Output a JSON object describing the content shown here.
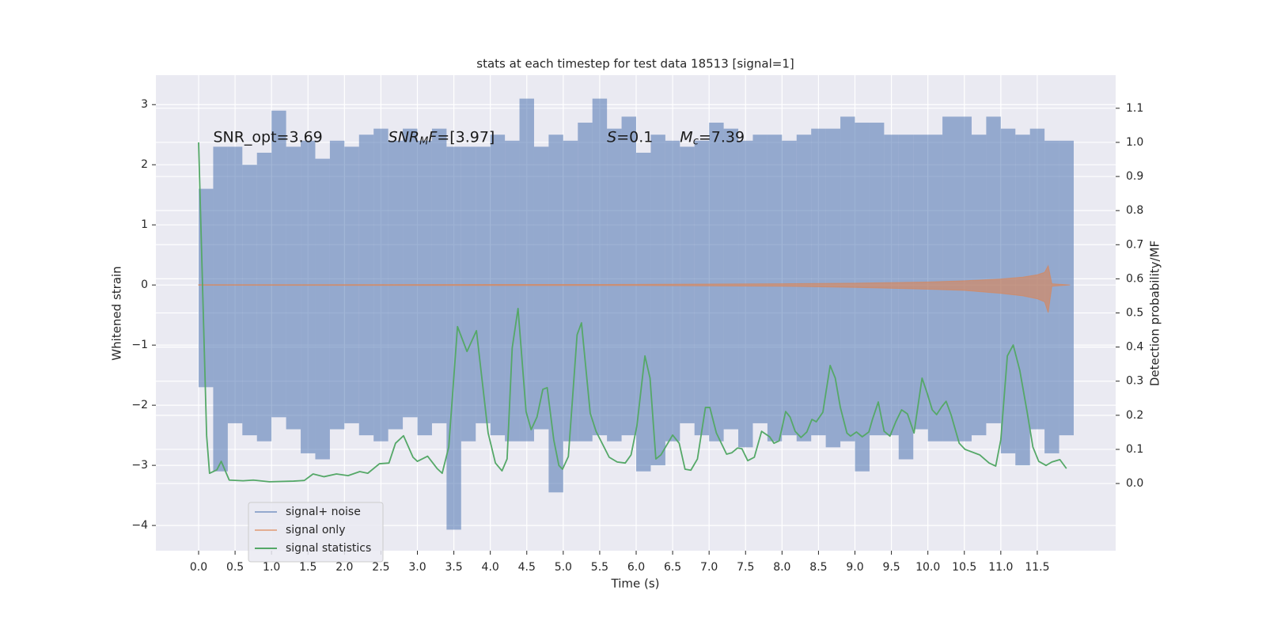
{
  "chart_data": {
    "type": "line",
    "title": "stats at each timestep for test data 18513 [signal=1]",
    "x_label": "Time (s)",
    "y_label": "Whitened strain",
    "y2_label": "Detection probability/MF",
    "xlim": [
      -0.586,
      12.575
    ],
    "ylim": [
      -4.42,
      3.49
    ],
    "y2lim": [
      -0.197,
      1.197
    ],
    "xticks": [
      {
        "value": 0,
        "label": "0.0"
      },
      {
        "value": 0.5,
        "label": "0.5"
      },
      {
        "value": 1,
        "label": "1.0"
      },
      {
        "value": 1.5,
        "label": "1.5"
      },
      {
        "value": 2,
        "label": "2.0"
      },
      {
        "value": 2.5,
        "label": "2.5"
      },
      {
        "value": 3,
        "label": "3.0"
      },
      {
        "value": 3.5,
        "label": "3.5"
      },
      {
        "value": 4,
        "label": "4.0"
      },
      {
        "value": 4.5,
        "label": "4.5"
      },
      {
        "value": 5,
        "label": "5.0"
      },
      {
        "value": 5.5,
        "label": "5.5"
      },
      {
        "value": 6,
        "label": "6.0"
      },
      {
        "value": 6.5,
        "label": "6.5"
      },
      {
        "value": 7,
        "label": "7.0"
      },
      {
        "value": 7.5,
        "label": "7.5"
      },
      {
        "value": 8,
        "label": "8.0"
      },
      {
        "value": 8.5,
        "label": "8.5"
      },
      {
        "value": 9,
        "label": "9.0"
      },
      {
        "value": 9.5,
        "label": "9.5"
      },
      {
        "value": 10,
        "label": "10.0"
      },
      {
        "value": 10.5,
        "label": "10.5"
      },
      {
        "value": 11,
        "label": "11.0"
      },
      {
        "value": 11.5,
        "label": "11.5"
      }
    ],
    "yticks": [
      {
        "value": -4,
        "label": "−4"
      },
      {
        "value": -3,
        "label": "−3"
      },
      {
        "value": -2,
        "label": "−2"
      },
      {
        "value": -1,
        "label": "−1"
      },
      0,
      1,
      2,
      3
    ],
    "y2ticks": [
      {
        "value": 0,
        "label": "0.0"
      },
      {
        "value": 0.1,
        "label": "0.1"
      },
      {
        "value": 0.2,
        "label": "0.2"
      },
      {
        "value": 0.3,
        "label": "0.3"
      },
      {
        "value": 0.4,
        "label": "0.4"
      },
      {
        "value": 0.5,
        "label": "0.5"
      },
      {
        "value": 0.6,
        "label": "0.6"
      },
      {
        "value": 0.7,
        "label": "0.7"
      },
      {
        "value": 0.8,
        "label": "0.8"
      },
      {
        "value": 0.9,
        "label": "0.9"
      },
      {
        "value": 1,
        "label": "1.0"
      },
      {
        "value": 1.1,
        "label": "1.1"
      }
    ],
    "grid": true,
    "legend": "lower left",
    "annotations": [
      {
        "x": 0.2,
        "y": 2.46,
        "parts": [
          {
            "text": "SNR_opt=3.69",
            "style": "normal"
          }
        ]
      },
      {
        "x": 2.6,
        "y": 2.46,
        "parts": [
          {
            "text": "SNR",
            "style": "italic"
          },
          {
            "text": "M",
            "style": "italic-sub"
          },
          {
            "text": "F",
            "style": "italic"
          },
          {
            "text": "=[3.97]",
            "style": "normal"
          }
        ]
      },
      {
        "x": 5.6,
        "y": 2.46,
        "parts": [
          {
            "text": "S",
            "style": "italic"
          },
          {
            "text": "=0.1",
            "style": "normal"
          }
        ]
      },
      {
        "x": 6.6,
        "y": 2.46,
        "parts": [
          {
            "text": "M",
            "style": "italic"
          },
          {
            "text": "c",
            "style": "italic-sub"
          },
          {
            "text": "=7.39",
            "style": "normal"
          }
        ]
      }
    ],
    "series": [
      {
        "name": "signal+ noise",
        "color": "#4c72b0",
        "alpha": 0.55,
        "x": [
          0,
          0.2,
          0.4,
          0.6,
          0.8,
          1,
          1.2,
          1.4,
          1.6,
          1.8,
          2,
          2.2,
          2.4,
          2.6,
          2.8,
          3,
          3.2,
          3.4,
          3.6,
          3.8,
          4,
          4.2,
          4.4,
          4.6,
          4.8,
          5,
          5.2,
          5.4,
          5.6,
          5.8,
          6,
          6.2,
          6.4,
          6.6,
          6.8,
          7,
          7.2,
          7.4,
          7.6,
          7.8,
          8,
          8.2,
          8.4,
          8.6,
          8.8,
          9,
          9.2,
          9.4,
          9.6,
          9.8,
          10,
          10.2,
          10.4,
          10.6,
          10.8,
          11,
          11.2,
          11.4,
          11.6,
          11.8
        ],
        "upper": [
          1.6,
          2.3,
          2.3,
          2.0,
          2.2,
          2.9,
          2.3,
          2.4,
          2.1,
          2.4,
          2.3,
          2.5,
          2.6,
          2.4,
          2.6,
          2.4,
          2.6,
          2.3,
          2.3,
          2.3,
          2.5,
          2.4,
          3.1,
          2.3,
          2.5,
          2.4,
          2.7,
          3.1,
          2.6,
          2.8,
          2.2,
          2.5,
          2.4,
          2.3,
          2.4,
          2.7,
          2.6,
          2.4,
          2.5,
          2.5,
          2.4,
          2.5,
          2.6,
          2.6,
          2.8,
          2.7,
          2.7,
          2.5,
          2.5,
          2.5,
          2.5,
          2.8,
          2.8,
          2.5,
          2.8,
          2.6,
          2.5,
          2.6,
          2.4,
          2.4
        ],
        "lower": [
          -1.7,
          -3.1,
          -2.3,
          -2.5,
          -2.6,
          -2.2,
          -2.4,
          -2.8,
          -2.9,
          -2.4,
          -2.3,
          -2.5,
          -2.6,
          -2.4,
          -2.2,
          -2.5,
          -2.3,
          -4.07,
          -2.6,
          -2.3,
          -2.5,
          -2.6,
          -2.6,
          -2.4,
          -3.45,
          -2.6,
          -2.6,
          -2.5,
          -2.6,
          -2.5,
          -3.1,
          -3.0,
          -2.6,
          -2.3,
          -2.5,
          -2.6,
          -2.4,
          -2.7,
          -2.3,
          -2.6,
          -2.5,
          -2.6,
          -2.5,
          -2.7,
          -2.6,
          -3.1,
          -2.5,
          -2.5,
          -2.9,
          -2.4,
          -2.6,
          -2.6,
          -2.6,
          -2.5,
          -2.3,
          -2.8,
          -3.0,
          -2.4,
          -2.8,
          -2.5
        ]
      },
      {
        "name": "signal only",
        "color": "#dd8452",
        "alpha": 0.6,
        "x": [
          0,
          6,
          8,
          9,
          10,
          10.5,
          11,
          11.3,
          11.5,
          11.6,
          11.65,
          11.7,
          11.95
        ],
        "upper": [
          0.005,
          0.01,
          0.02,
          0.03,
          0.05,
          0.07,
          0.1,
          0.13,
          0.17,
          0.21,
          0.32,
          0.02,
          0.0
        ],
        "lower": [
          -0.005,
          -0.01,
          -0.02,
          -0.04,
          -0.07,
          -0.09,
          -0.14,
          -0.18,
          -0.23,
          -0.28,
          -0.46,
          -0.02,
          0.0
        ]
      },
      {
        "name": "signal statistics",
        "color": "#55a868",
        "axis": "y2",
        "x": [
          0,
          0.11,
          0.15,
          0.25,
          0.31,
          0.42,
          0.61,
          0.75,
          0.97,
          1.3,
          1.45,
          1.57,
          1.72,
          1.89,
          2.05,
          2.21,
          2.32,
          2.48,
          2.61,
          2.7,
          2.81,
          2.94,
          3.0,
          3.14,
          3.27,
          3.34,
          3.43,
          3.55,
          3.68,
          3.81,
          3.97,
          4.07,
          4.16,
          4.23,
          4.3,
          4.38,
          4.49,
          4.56,
          4.64,
          4.72,
          4.78,
          4.87,
          4.94,
          4.99,
          5.07,
          5.19,
          5.25,
          5.37,
          5.45,
          5.63,
          5.74,
          5.85,
          5.93,
          6.01,
          6.12,
          6.19,
          6.27,
          6.34,
          6.5,
          6.59,
          6.67,
          6.75,
          6.84,
          6.95,
          7.01,
          7.1,
          7.24,
          7.31,
          7.39,
          7.45,
          7.53,
          7.62,
          7.72,
          7.83,
          7.89,
          7.96,
          8.05,
          8.11,
          8.18,
          8.26,
          8.34,
          8.41,
          8.47,
          8.56,
          8.66,
          8.73,
          8.8,
          8.89,
          8.94,
          9.02,
          9.1,
          9.19,
          9.24,
          9.32,
          9.4,
          9.48,
          9.56,
          9.64,
          9.72,
          9.81,
          9.92,
          9.99,
          10.06,
          10.12,
          10.19,
          10.25,
          10.32,
          10.43,
          10.51,
          10.71,
          10.84,
          10.93,
          11.0,
          11.09,
          11.17,
          11.26,
          11.36,
          11.44,
          11.52,
          11.62,
          11.7,
          11.81,
          11.9
        ],
        "values": [
          1.0,
          0.14,
          0.03,
          0.04,
          0.065,
          0.01,
          0.008,
          0.01,
          0.005,
          0.007,
          0.009,
          0.028,
          0.02,
          0.028,
          0.023,
          0.035,
          0.03,
          0.058,
          0.06,
          0.118,
          0.14,
          0.077,
          0.065,
          0.08,
          0.044,
          0.03,
          0.107,
          0.46,
          0.387,
          0.448,
          0.148,
          0.06,
          0.037,
          0.072,
          0.397,
          0.513,
          0.211,
          0.158,
          0.195,
          0.276,
          0.281,
          0.128,
          0.053,
          0.042,
          0.079,
          0.436,
          0.471,
          0.206,
          0.153,
          0.077,
          0.063,
          0.06,
          0.084,
          0.169,
          0.374,
          0.309,
          0.072,
          0.084,
          0.142,
          0.118,
          0.042,
          0.039,
          0.072,
          0.223,
          0.223,
          0.148,
          0.086,
          0.09,
          0.104,
          0.102,
          0.067,
          0.077,
          0.153,
          0.137,
          0.118,
          0.125,
          0.211,
          0.195,
          0.153,
          0.135,
          0.151,
          0.188,
          0.181,
          0.209,
          0.346,
          0.309,
          0.223,
          0.148,
          0.139,
          0.151,
          0.137,
          0.151,
          0.188,
          0.239,
          0.153,
          0.139,
          0.181,
          0.216,
          0.204,
          0.148,
          0.309,
          0.265,
          0.216,
          0.202,
          0.225,
          0.241,
          0.2,
          0.118,
          0.1,
          0.084,
          0.06,
          0.051,
          0.128,
          0.374,
          0.406,
          0.332,
          0.211,
          0.107,
          0.065,
          0.053,
          0.063,
          0.07,
          0.044
        ]
      }
    ]
  }
}
